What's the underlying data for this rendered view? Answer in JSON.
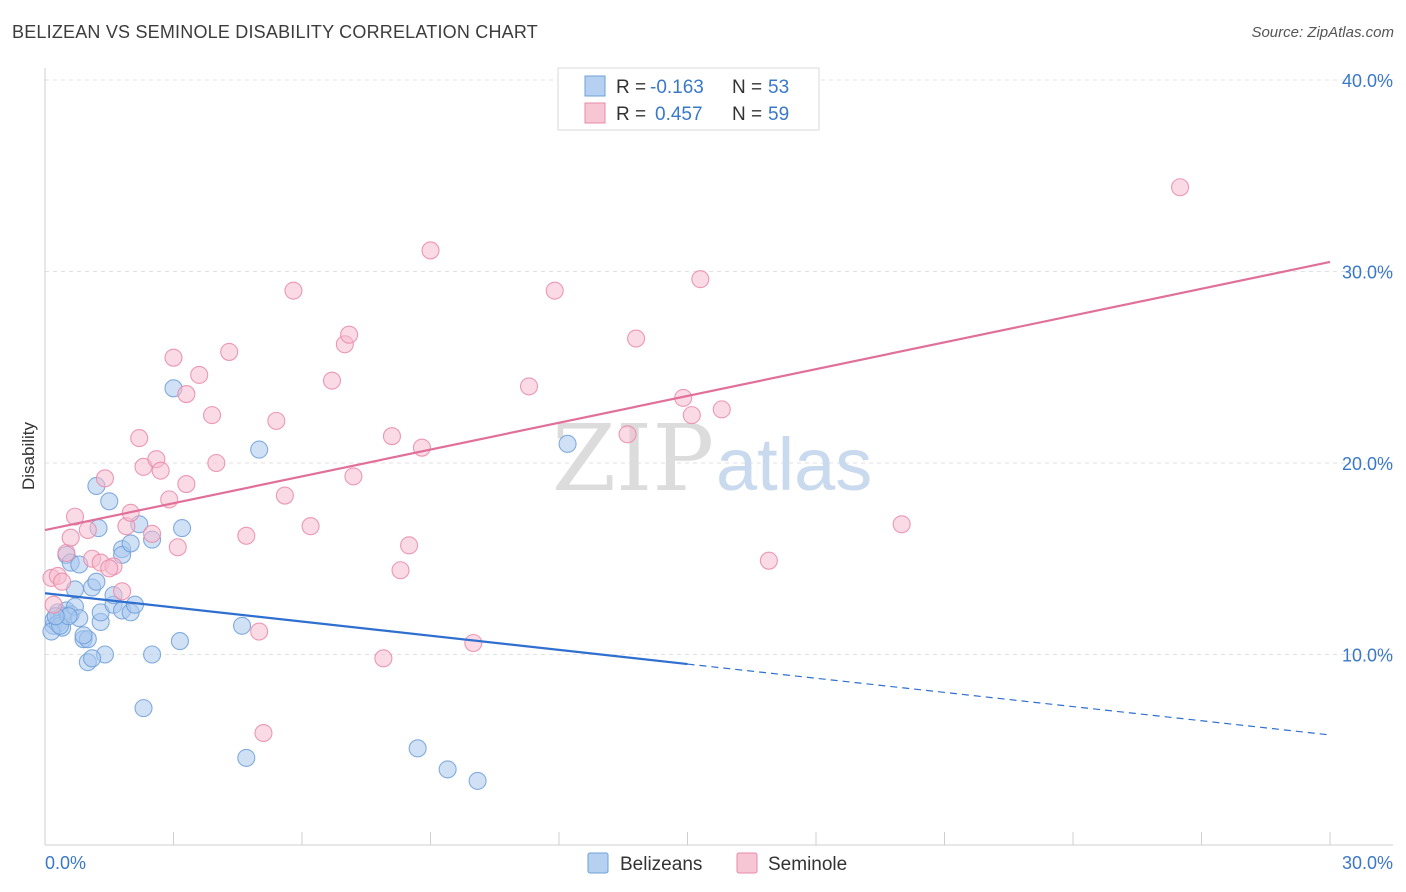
{
  "header": {
    "title": "BELIZEAN VS SEMINOLE DISABILITY CORRELATION CHART",
    "source": "Source: ZipAtlas.com"
  },
  "watermark": {
    "zip": "ZIP",
    "atlas": "atlas"
  },
  "legend_box": {
    "rows": [
      {
        "r_label": "R =",
        "r_value": "-0.163",
        "n_label": "N =",
        "n_value": "53",
        "color": "#a9c8ef",
        "stroke": "#6e9fd8"
      },
      {
        "r_label": "R =",
        "r_value": "0.457",
        "n_label": "N =",
        "n_value": "59",
        "color": "#f6bccd",
        "stroke": "#e98aa8"
      }
    ]
  },
  "bottom_legend": {
    "items": [
      {
        "label": "Belizeans",
        "color": "#a9c8ef",
        "stroke": "#6e9fd8"
      },
      {
        "label": "Seminole",
        "color": "#f6bccd",
        "stroke": "#e98aa8"
      }
    ]
  },
  "chart_data": {
    "type": "scatter",
    "xlabel": "",
    "ylabel": "Disability",
    "xlim": [
      0,
      30
    ],
    "ylim": [
      0,
      40
    ],
    "x_tick_labels": [
      "0.0%",
      "30.0%"
    ],
    "y_ticks": [
      10,
      20,
      30,
      40
    ],
    "y_tick_labels": [
      "10.0%",
      "20.0%",
      "30.0%",
      "40.0%"
    ],
    "grid": true,
    "series": [
      {
        "name": "Belizeans",
        "color": "#6e9fd8",
        "fill": "#a9c8ef",
        "trend": {
          "x0": 0,
          "y0": 13.2,
          "x1": 15.0,
          "y1": 9.5,
          "dash_to_x": 30,
          "dash_to_y": 5.8,
          "color": "#2f6fcf"
        },
        "points": [
          [
            0.2,
            11.5
          ],
          [
            0.3,
            12.2
          ],
          [
            0.2,
            11.8
          ],
          [
            0.4,
            12.0
          ],
          [
            0.3,
            11.6
          ],
          [
            0.5,
            12.3
          ],
          [
            0.6,
            12.1
          ],
          [
            0.4,
            11.4
          ],
          [
            0.7,
            12.5
          ],
          [
            0.8,
            11.9
          ],
          [
            0.5,
            15.2
          ],
          [
            0.6,
            14.8
          ],
          [
            0.8,
            14.7
          ],
          [
            0.9,
            10.8
          ],
          [
            1.0,
            10.8
          ],
          [
            1.1,
            13.5
          ],
          [
            1.0,
            9.6
          ],
          [
            1.2,
            13.8
          ],
          [
            1.3,
            11.7
          ],
          [
            1.4,
            10.0
          ],
          [
            1.3,
            12.2
          ],
          [
            1.6,
            12.6
          ],
          [
            1.6,
            13.1
          ],
          [
            1.8,
            15.5
          ],
          [
            1.8,
            15.2
          ],
          [
            1.8,
            12.3
          ],
          [
            2.0,
            12.2
          ],
          [
            2.0,
            15.8
          ],
          [
            2.1,
            12.6
          ],
          [
            2.2,
            16.8
          ],
          [
            2.3,
            7.2
          ],
          [
            2.5,
            16.0
          ],
          [
            2.5,
            10.0
          ],
          [
            1.2,
            18.8
          ],
          [
            1.5,
            18.0
          ],
          [
            1.25,
            16.6
          ],
          [
            0.7,
            13.4
          ],
          [
            3.0,
            23.9
          ],
          [
            3.2,
            16.6
          ],
          [
            3.15,
            10.7
          ],
          [
            4.6,
            11.5
          ],
          [
            5.0,
            20.7
          ],
          [
            4.7,
            4.6
          ],
          [
            8.7,
            5.1
          ],
          [
            9.4,
            4.0
          ],
          [
            10.1,
            3.4
          ],
          [
            12.2,
            21.0
          ],
          [
            0.15,
            11.2
          ],
          [
            0.9,
            11.0
          ],
          [
            0.35,
            11.5
          ],
          [
            1.1,
            9.8
          ],
          [
            0.55,
            12.0
          ],
          [
            0.25,
            12.0
          ]
        ]
      },
      {
        "name": "Seminole",
        "color": "#e98aa8",
        "fill": "#f6bccd",
        "trend": {
          "x0": 0,
          "y0": 16.5,
          "x1": 30,
          "y1": 30.5,
          "color": "#e0709a"
        },
        "points": [
          [
            0.15,
            14.0
          ],
          [
            0.3,
            14.1
          ],
          [
            0.5,
            15.3
          ],
          [
            0.6,
            16.1
          ],
          [
            0.7,
            17.2
          ],
          [
            1.0,
            16.5
          ],
          [
            1.1,
            15.0
          ],
          [
            1.3,
            14.8
          ],
          [
            1.4,
            19.2
          ],
          [
            1.6,
            14.6
          ],
          [
            1.8,
            13.3
          ],
          [
            1.9,
            16.7
          ],
          [
            2.0,
            17.4
          ],
          [
            2.2,
            21.3
          ],
          [
            2.3,
            19.8
          ],
          [
            2.5,
            16.3
          ],
          [
            2.6,
            20.2
          ],
          [
            2.7,
            19.6
          ],
          [
            2.9,
            18.1
          ],
          [
            3.0,
            25.5
          ],
          [
            3.1,
            15.6
          ],
          [
            3.3,
            18.9
          ],
          [
            3.3,
            23.6
          ],
          [
            3.6,
            24.6
          ],
          [
            3.9,
            22.5
          ],
          [
            4.0,
            20.0
          ],
          [
            4.3,
            25.8
          ],
          [
            4.7,
            16.2
          ],
          [
            5.0,
            11.2
          ],
          [
            5.1,
            5.9
          ],
          [
            5.4,
            22.2
          ],
          [
            5.6,
            18.3
          ],
          [
            5.8,
            29.0
          ],
          [
            6.2,
            16.7
          ],
          [
            6.7,
            24.3
          ],
          [
            7.0,
            26.2
          ],
          [
            7.1,
            26.7
          ],
          [
            7.2,
            19.3
          ],
          [
            8.1,
            21.4
          ],
          [
            7.9,
            9.8
          ],
          [
            8.3,
            14.4
          ],
          [
            8.5,
            15.7
          ],
          [
            8.8,
            20.8
          ],
          [
            9.0,
            31.1
          ],
          [
            10.0,
            10.6
          ],
          [
            11.3,
            24.0
          ],
          [
            11.9,
            29.0
          ],
          [
            13.6,
            21.5
          ],
          [
            13.8,
            26.5
          ],
          [
            14.9,
            23.4
          ],
          [
            15.1,
            22.5
          ],
          [
            15.3,
            29.6
          ],
          [
            15.8,
            22.8
          ],
          [
            16.9,
            14.9
          ],
          [
            20.0,
            16.8
          ],
          [
            26.5,
            34.4
          ],
          [
            0.4,
            13.8
          ],
          [
            0.2,
            12.6
          ],
          [
            1.5,
            14.5
          ]
        ]
      }
    ]
  }
}
